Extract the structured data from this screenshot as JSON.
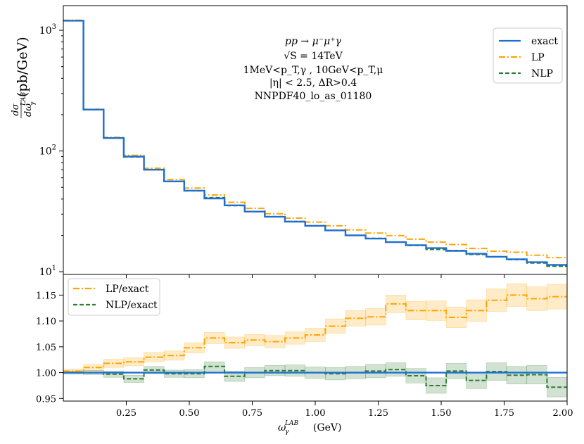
{
  "chart_data": [
    {
      "type": "line",
      "panel": "main",
      "yscale": "log",
      "xlim": [
        0,
        2.0
      ],
      "ylim": [
        9.5,
        1600
      ],
      "ylabel_num": "dσ",
      "ylabel_den": "dω",
      "ylabel_sup": "LAB",
      "ylabel_sub": "γ",
      "ylabel_unit": "(pb/GeV)",
      "yticks": [
        {
          "value": 10,
          "base": "10",
          "exp": "1"
        },
        {
          "value": 100,
          "base": "10",
          "exp": "2"
        },
        {
          "value": 1000,
          "base": "10",
          "exp": "3"
        }
      ],
      "annotations": {
        "process": "pp → μ⁻μ⁺γ",
        "energy": "√S = 14TeV",
        "cuts_pt": "1MeV<p_T,γ ,    10GeV<p_T,μ",
        "cuts_eta": "|η| < 2.5,     ΔR>0.4",
        "pdf": "NNPDF40_lo_as_01180"
      },
      "legend_position": "top-right",
      "bin_edges": [
        0.0,
        0.08,
        0.16,
        0.24,
        0.32,
        0.4,
        0.48,
        0.56,
        0.64,
        0.72,
        0.8,
        0.88,
        0.96,
        1.04,
        1.12,
        1.2,
        1.28,
        1.36,
        1.44,
        1.52,
        1.6,
        1.68,
        1.76,
        1.84,
        1.92,
        2.0
      ],
      "series": [
        {
          "name": "exact",
          "color": "#1f6fd1",
          "dash": "solid",
          "values": [
            1200,
            220,
            128,
            90,
            70,
            56,
            47,
            40.5,
            35.5,
            31.5,
            28.5,
            26,
            24,
            22,
            20,
            18.8,
            17.6,
            16.6,
            15.7,
            14.9,
            14.1,
            13.3,
            12.7,
            12.0,
            11.4
          ]
        },
        {
          "name": "LP",
          "color": "#ffa500",
          "dash": "dashdot",
          "values": [
            1210,
            222,
            130,
            92,
            72,
            58,
            49.3,
            43.2,
            37.6,
            33.5,
            30.2,
            27.8,
            25.8,
            24.0,
            22.2,
            20.9,
            19.9,
            18.6,
            17.6,
            16.8,
            15.6,
            14.8,
            14.5,
            13.7,
            13.1
          ]
        },
        {
          "name": "NLP",
          "color": "#2e7d32",
          "dash": "dashed",
          "values": [
            1200,
            220,
            127.8,
            89.3,
            70.3,
            56.1,
            46.8,
            41.1,
            35.3,
            31.5,
            28.6,
            26.1,
            24.0,
            22.0,
            20.0,
            18.9,
            17.6,
            16.5,
            15.3,
            15.0,
            13.9,
            13.3,
            12.6,
            11.8,
            11.1
          ]
        }
      ]
    },
    {
      "type": "line",
      "panel": "ratio",
      "xlim": [
        0,
        2.0
      ],
      "ylim": [
        0.945,
        1.19
      ],
      "xlabel": "ω",
      "xlabel_sup": "LAB",
      "xlabel_sub": "γ",
      "xlabel_unit": "(GeV)",
      "xticks": [
        0.25,
        0.5,
        0.75,
        1.0,
        1.25,
        1.5,
        1.75,
        2.0
      ],
      "xtick_labels": [
        "0.25",
        "0.50",
        "0.75",
        "1.00",
        "1.25",
        "1.50",
        "1.75",
        "2.00"
      ],
      "yticks": [
        0.95,
        1.0,
        1.05,
        1.1,
        1.15
      ],
      "ytick_labels": [
        "0.95",
        "1.00",
        "1.05",
        "1.10",
        "1.15"
      ],
      "legend_position": "top-left",
      "bin_edges": [
        0.0,
        0.08,
        0.16,
        0.24,
        0.32,
        0.4,
        0.48,
        0.56,
        0.64,
        0.72,
        0.8,
        0.88,
        0.96,
        1.04,
        1.12,
        1.2,
        1.28,
        1.36,
        1.44,
        1.52,
        1.6,
        1.68,
        1.76,
        1.84,
        1.92,
        2.0
      ],
      "reference": {
        "name": "exact",
        "value": 1.0,
        "color": "#1f6fd1"
      },
      "series": [
        {
          "name": "LP/exact",
          "color": "#ffa500",
          "band_color": "#ffa500",
          "dash": "dashdot",
          "values": [
            1.003,
            1.01,
            1.018,
            1.021,
            1.03,
            1.033,
            1.048,
            1.067,
            1.058,
            1.063,
            1.06,
            1.067,
            1.073,
            1.09,
            1.105,
            1.108,
            1.133,
            1.12,
            1.12,
            1.107,
            1.12,
            1.14,
            1.15,
            1.143,
            1.147
          ],
          "errors": [
            0.004,
            0.006,
            0.008,
            0.008,
            0.009,
            0.009,
            0.01,
            0.011,
            0.011,
            0.011,
            0.012,
            0.012,
            0.013,
            0.014,
            0.015,
            0.016,
            0.017,
            0.018,
            0.019,
            0.02,
            0.021,
            0.022,
            0.022,
            0.023,
            0.024
          ]
        },
        {
          "name": "NLP/exact",
          "color": "#2e7d32",
          "band_color": "#2e7d32",
          "dash": "dashed",
          "values": [
            1.0,
            1.0,
            0.997,
            0.988,
            1.005,
            0.998,
            0.998,
            1.012,
            0.993,
            1.0,
            1.004,
            1.004,
            1.0,
            0.998,
            1.0,
            1.003,
            1.006,
            0.994,
            0.975,
            1.003,
            0.985,
            1.002,
            0.995,
            0.996,
            0.972
          ],
          "errors": [
            0.003,
            0.004,
            0.006,
            0.007,
            0.007,
            0.007,
            0.008,
            0.009,
            0.01,
            0.01,
            0.01,
            0.011,
            0.011,
            0.012,
            0.012,
            0.013,
            0.013,
            0.014,
            0.015,
            0.015,
            0.016,
            0.017,
            0.017,
            0.018,
            0.019
          ]
        }
      ]
    }
  ]
}
